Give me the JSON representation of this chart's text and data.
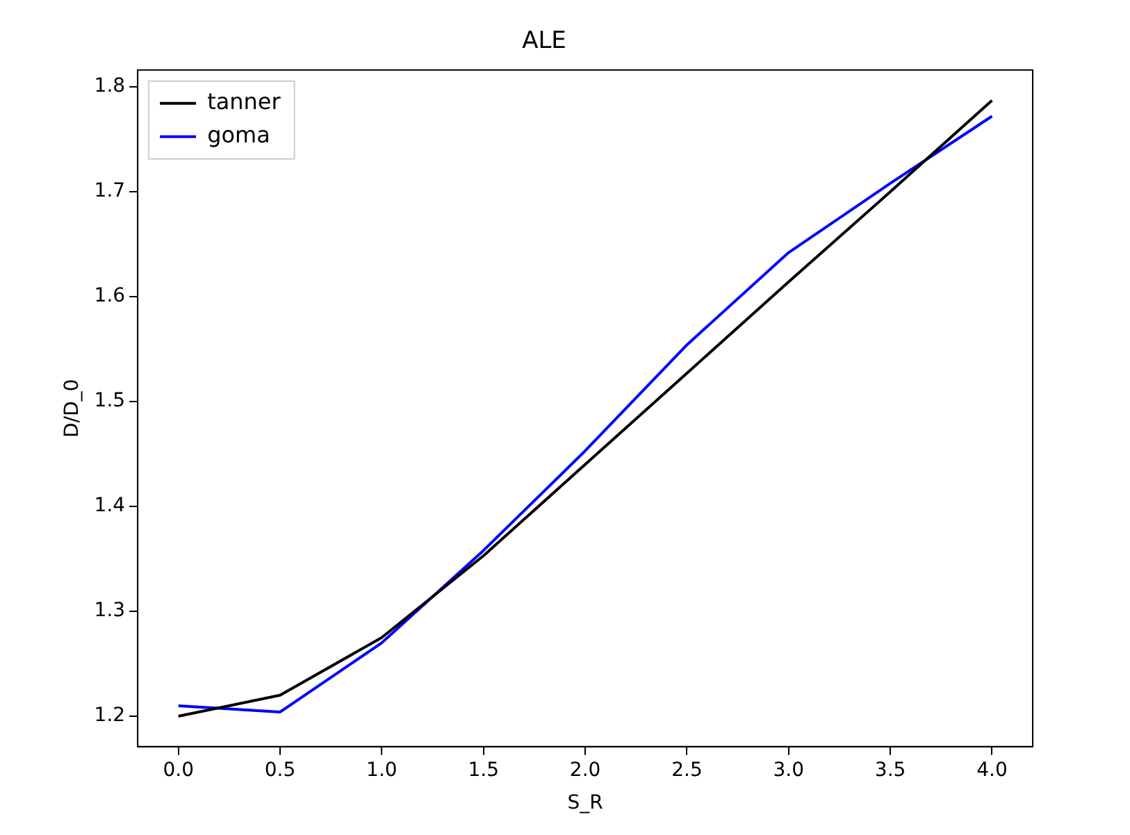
{
  "chart_data": {
    "type": "line",
    "title": "ALE",
    "xlabel": "S_R",
    "ylabel": "D/D_0",
    "x": [
      0,
      0.5,
      1,
      1.5,
      2,
      2.5,
      3,
      3.5,
      4
    ],
    "series": [
      {
        "name": "tanner",
        "color": "#000000",
        "values": [
          1.2,
          1.22,
          1.275,
          1.353,
          1.44,
          1.527,
          1.614,
          1.7,
          1.787
        ]
      },
      {
        "name": "goma",
        "color": "#0000ff",
        "values": [
          1.21,
          1.204,
          1.27,
          1.358,
          1.453,
          1.554,
          1.642,
          1.708,
          1.772
        ]
      }
    ],
    "xlim": [
      -0.2,
      4.2
    ],
    "xticks": [
      {
        "value": 0,
        "label": "0.0"
      },
      {
        "value": 0.5,
        "label": "0.5"
      },
      {
        "value": 1,
        "label": "1.0"
      },
      {
        "value": 1.5,
        "label": "1.5"
      },
      {
        "value": 2,
        "label": "2.0"
      },
      {
        "value": 2.5,
        "label": "2.5"
      },
      {
        "value": 3,
        "label": "3.0"
      },
      {
        "value": 3.5,
        "label": "3.5"
      },
      {
        "value": 4,
        "label": "4.0"
      }
    ],
    "ylim": [
      1.171,
      1.816
    ],
    "yticks": [
      1.2,
      1.3,
      1.4,
      1.5,
      1.6,
      1.7,
      1.8
    ],
    "grid": false,
    "legend": "top left",
    "marker": "none",
    "line_style": "solid"
  }
}
